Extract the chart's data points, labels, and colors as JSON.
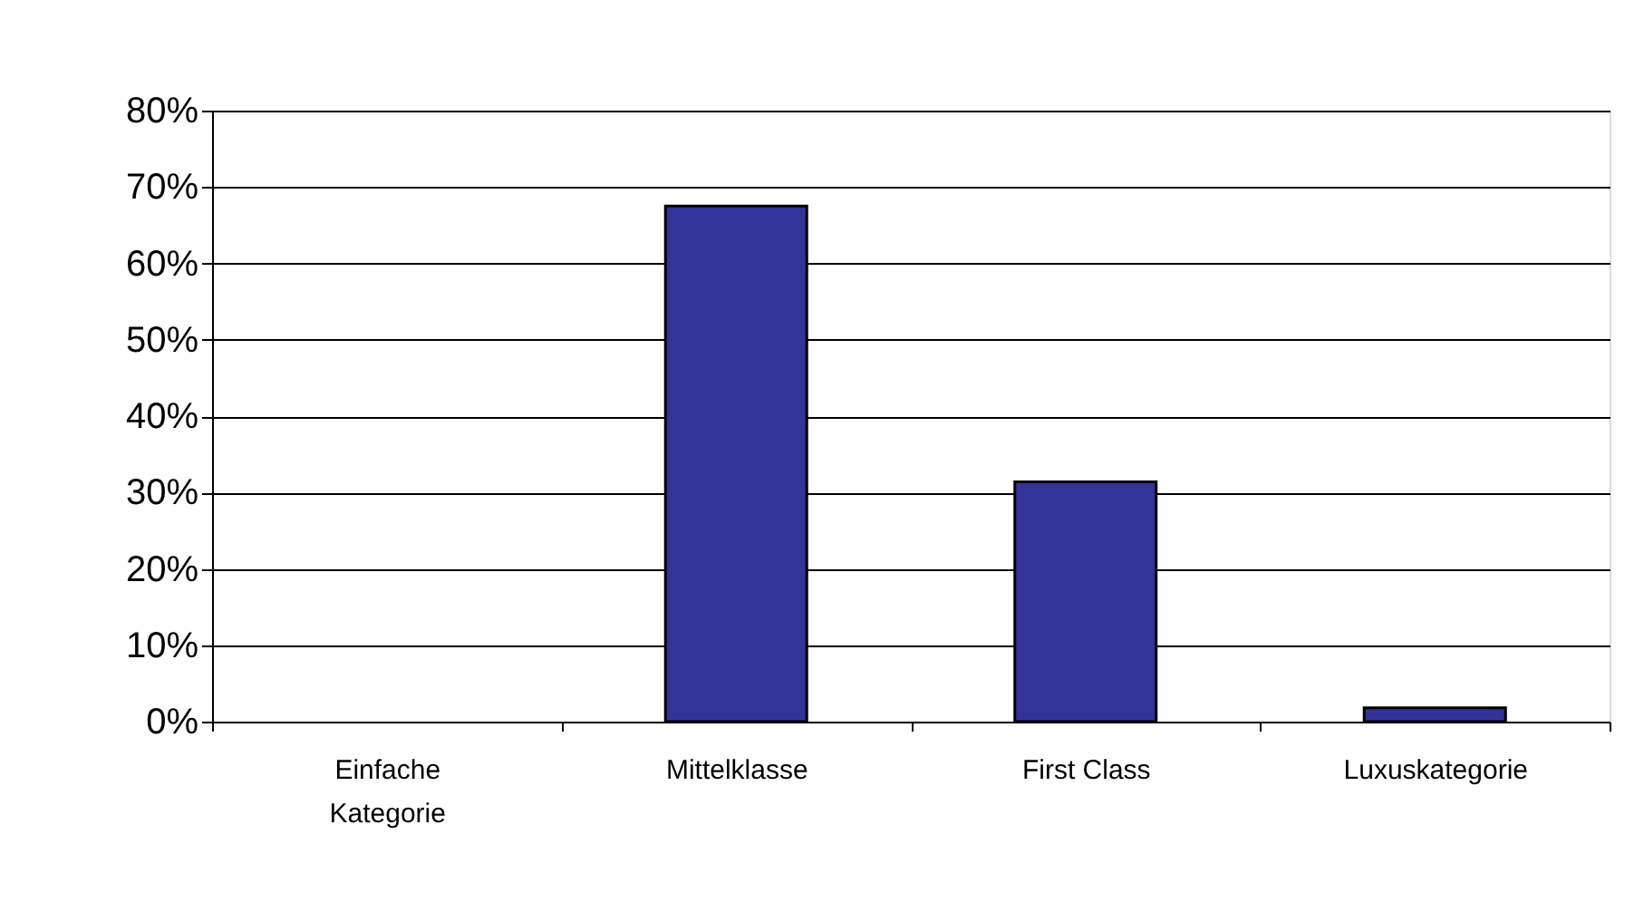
{
  "chart_data": {
    "type": "bar",
    "categories": [
      "Einfache\nKategorie",
      "Mittelklasse",
      "First Class",
      "Luxuskategorie"
    ],
    "values": [
      0,
      67.5,
      31.4,
      1.8
    ],
    "color": "#333399",
    "ylim": [
      0,
      80
    ],
    "yticks": [
      {
        "value": 0,
        "label": "0%"
      },
      {
        "value": 10,
        "label": "10%"
      },
      {
        "value": 20,
        "label": "20%"
      },
      {
        "value": 30,
        "label": "30%"
      },
      {
        "value": 40,
        "label": "40%"
      },
      {
        "value": 50,
        "label": "50%"
      },
      {
        "value": 60,
        "label": "60%"
      },
      {
        "value": 70,
        "label": "70%"
      },
      {
        "value": 80,
        "label": "80%"
      }
    ],
    "grid": "y"
  }
}
